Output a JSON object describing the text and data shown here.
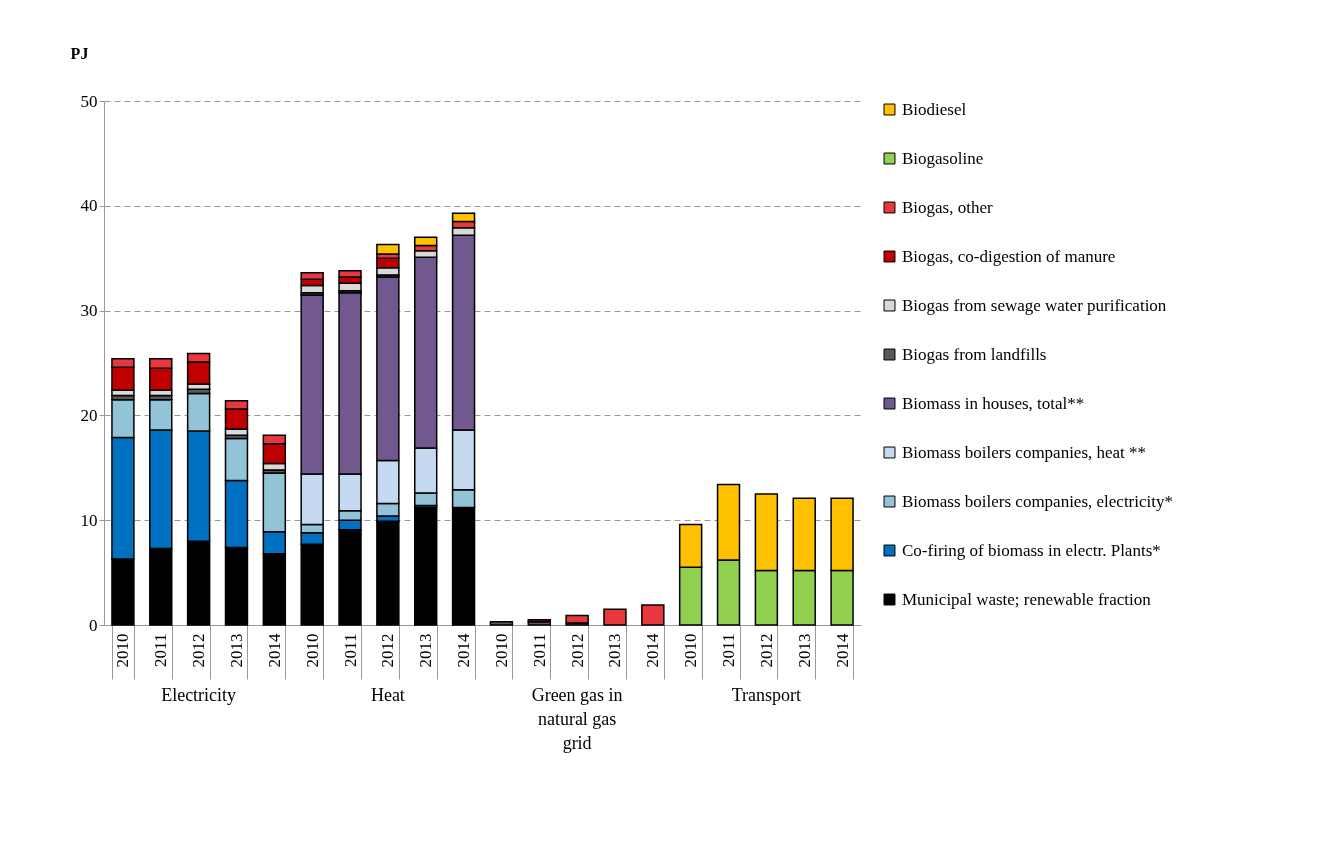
{
  "chart_data": {
    "type": "bar",
    "stacked": true,
    "ylabel": "PJ",
    "ylim": [
      0,
      50
    ],
    "yticks": [
      0,
      10,
      20,
      30,
      40,
      50
    ],
    "grid": "y",
    "legend": "right",
    "categories": [
      "2010",
      "2011",
      "2012",
      "2013",
      "2014",
      "2010",
      "2011",
      "2012",
      "2013",
      "2014",
      "2010",
      "2011",
      "2012",
      "2013",
      "2014",
      "2010",
      "2011",
      "2012",
      "2013",
      "2014"
    ],
    "annotations": [
      "Electricity",
      "Heat",
      "Green gas in natural gas grid",
      "Transport"
    ],
    "series": [
      {
        "name": "Municipal waste; renewable fraction",
        "color": "#000000",
        "values": [
          6.3,
          7.3,
          8.0,
          7.4,
          6.8,
          7.7,
          9.1,
          9.9,
          11.2,
          11.2,
          null,
          null,
          null,
          null,
          null,
          null,
          null,
          null,
          null,
          null
        ]
      },
      {
        "name": "Co-firing of biomass in electr. Plants*",
        "color": "#0070c0",
        "values": [
          11.6,
          11.3,
          10.5,
          6.4,
          2.1,
          1.1,
          0.9,
          0.5,
          0.2,
          null,
          null,
          null,
          null,
          null,
          null,
          null,
          null,
          null,
          null,
          null
        ]
      },
      {
        "name": "Biomass boilers companies, electricity*",
        "color": "#93c3d6",
        "values": [
          3.6,
          2.9,
          3.6,
          4.0,
          5.6,
          0.8,
          0.9,
          1.2,
          1.2,
          1.7,
          null,
          null,
          null,
          null,
          null,
          null,
          null,
          null,
          null,
          null
        ]
      },
      {
        "name": "Biomass boilers companies, heat **",
        "color": "#c5d9f1",
        "values": [
          null,
          null,
          null,
          null,
          null,
          4.8,
          3.5,
          4.1,
          4.3,
          5.7,
          null,
          null,
          null,
          null,
          null,
          null,
          null,
          null,
          null,
          null
        ]
      },
      {
        "name": "Biomass in houses, total**",
        "color": "#71588f",
        "values": [
          null,
          null,
          null,
          null,
          null,
          17.1,
          17.3,
          17.5,
          18.2,
          18.6,
          null,
          null,
          null,
          null,
          null,
          null,
          null,
          null,
          null,
          null
        ]
      },
      {
        "name": "Biogas from landfills",
        "color": "#595959",
        "values": [
          0.4,
          0.4,
          0.4,
          0.3,
          0.3,
          0.2,
          0.2,
          0.2,
          null,
          null,
          0.3,
          0.3,
          0.2,
          null,
          null,
          null,
          null,
          null,
          null,
          null
        ]
      },
      {
        "name": "Biogas from sewage water purification",
        "color": "#d9d9d9",
        "values": [
          0.5,
          0.5,
          0.5,
          0.6,
          0.6,
          0.7,
          0.7,
          0.7,
          0.6,
          0.7,
          null,
          null,
          null,
          null,
          null,
          null,
          null,
          null,
          null,
          null
        ]
      },
      {
        "name": "Biogas, co-digestion of manure",
        "color": "#c00000",
        "values": [
          2.2,
          2.1,
          2.1,
          1.9,
          1.9,
          0.6,
          0.6,
          0.9,
          null,
          null,
          null,
          0.2,
          null,
          null,
          null,
          null,
          null,
          null,
          null,
          null
        ]
      },
      {
        "name": "Biogas, other",
        "color": "#e8383d",
        "values": [
          0.8,
          0.9,
          0.8,
          0.8,
          0.8,
          0.6,
          0.6,
          0.4,
          0.5,
          0.6,
          null,
          null,
          0.7,
          1.5,
          1.9,
          null,
          null,
          null,
          null,
          null
        ]
      },
      {
        "name": "Biogasoline",
        "color": "#92d050",
        "values": [
          null,
          null,
          null,
          null,
          null,
          null,
          null,
          null,
          null,
          null,
          null,
          null,
          null,
          null,
          null,
          5.5,
          6.2,
          5.2,
          5.2,
          5.2
        ]
      },
      {
        "name": "Biodiesel",
        "color": "#ffc000",
        "values": [
          null,
          null,
          null,
          null,
          null,
          null,
          null,
          0.9,
          0.8,
          0.8,
          null,
          null,
          null,
          null,
          null,
          4.1,
          7.2,
          7.3,
          6.9,
          6.9
        ]
      }
    ]
  }
}
